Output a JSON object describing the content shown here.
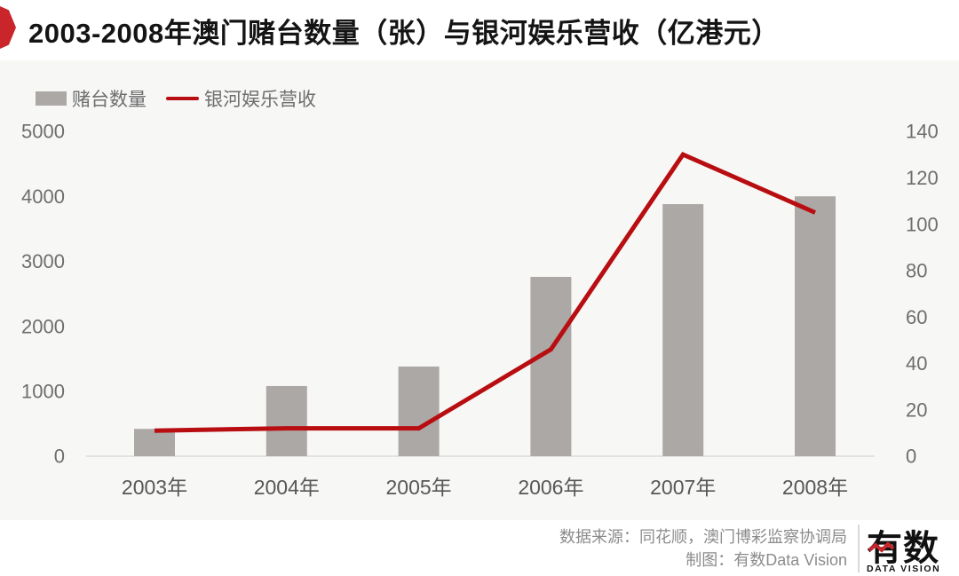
{
  "title": "2003-2008年澳门赌台数量（张）与银河娱乐营收（亿港元）",
  "legend": [
    {
      "label": "赌台数量",
      "type": "bar",
      "color": "#ACA8A5"
    },
    {
      "label": "银河娱乐营收",
      "type": "line",
      "color": "#B80E11"
    }
  ],
  "footer": {
    "source_line": "数据来源：同花顺，澳门博彩监察协调局",
    "credit_line": "制图：有数Data Vision",
    "logo_text": "有数",
    "logo_subtext": "DATA VISION"
  },
  "colors": {
    "badge_red": "#C9252B",
    "bar_gray": "#ACA8A5",
    "line_red": "#B80E11",
    "chart_bg": "#F7F7F6",
    "axis_line": "#E3E2E0",
    "axis_text": "#6E6E6E",
    "xaxis_text": "#575757",
    "footer_text": "#8C8C8C"
  },
  "chart_data": {
    "type": "bar",
    "subtype": "bar-line-combo",
    "title": "2003-2008年澳门赌台数量（张）与银河娱乐营收（亿港元）",
    "categories": [
      "2003年",
      "2004年",
      "2005年",
      "2006年",
      "2007年",
      "2008年"
    ],
    "series": [
      {
        "name": "赌台数量",
        "type": "bar",
        "axis": "left",
        "color": "#ACA8A5",
        "values": [
          420,
          1080,
          1380,
          2760,
          3880,
          4000
        ]
      },
      {
        "name": "银河娱乐营收",
        "type": "line",
        "axis": "right",
        "color": "#B80E11",
        "values": [
          11,
          12,
          12,
          46,
          130,
          105
        ]
      }
    ],
    "left_axis": {
      "min": 0,
      "max": 5000,
      "step": 1000,
      "ticks": [
        5000,
        4000,
        3000,
        2000,
        1000,
        0
      ]
    },
    "right_axis": {
      "min": 0,
      "max": 140,
      "step": 20,
      "ticks": [
        140,
        120,
        100,
        80,
        60,
        40,
        20,
        0
      ]
    },
    "grid": false,
    "legend_position": "top-left"
  }
}
